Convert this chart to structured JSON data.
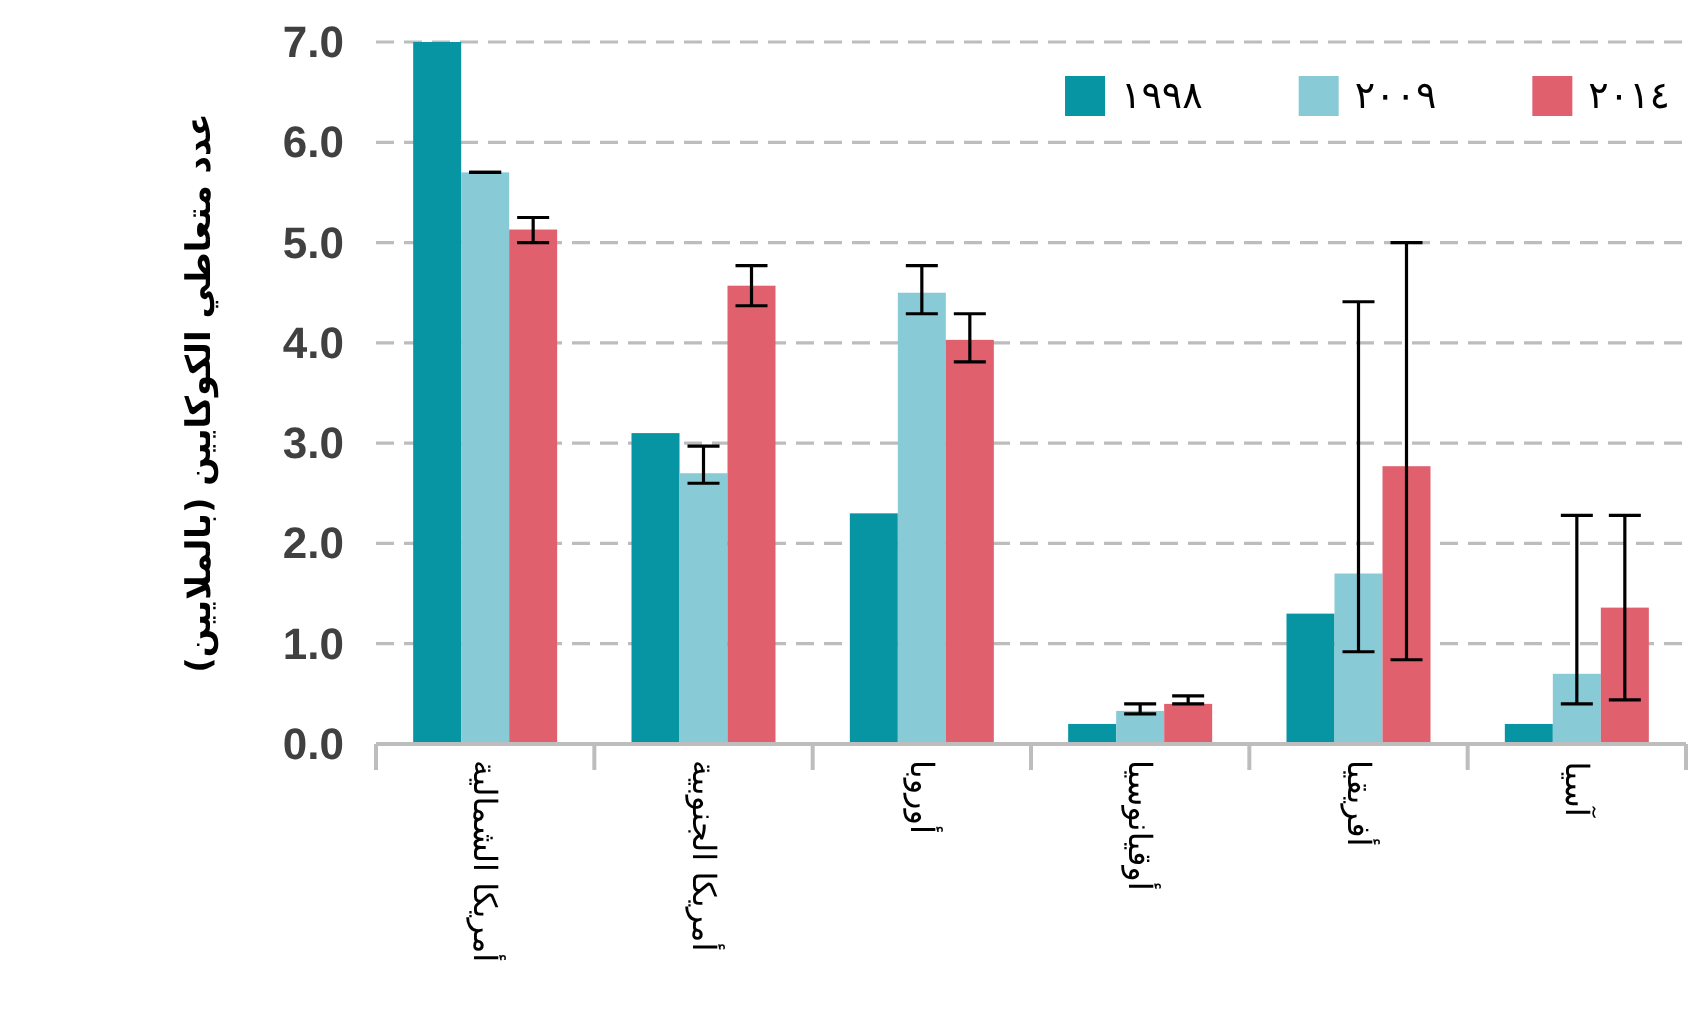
{
  "chart_data": {
    "type": "bar",
    "ylabel": "عدد متعاطي الكوكايين (بالملايين)",
    "categories": [
      "أمريكا الشمالية",
      "أمريكا الجنوبية",
      "أوروبا",
      "أوقيانوسيا",
      "أفريقيا",
      "آسيا"
    ],
    "series": [
      {
        "name": "١٩٩٨",
        "color": "#0795a3",
        "values": [
          7.0,
          3.1,
          2.3,
          0.2,
          1.3,
          0.2
        ]
      },
      {
        "name": "٢٠٠٩",
        "color": "#88cbd6",
        "values": [
          5.7,
          2.7,
          4.5,
          0.33,
          1.7,
          0.7
        ],
        "errors": [
          [
            5.7,
            5.7
          ],
          [
            2.6,
            2.97
          ],
          [
            4.29,
            4.77
          ],
          [
            0.3,
            0.4
          ],
          [
            0.92,
            4.41
          ],
          [
            0.4,
            2.28
          ]
        ]
      },
      {
        "name": "٢٠١٤",
        "color": "#e0606e",
        "values": [
          5.13,
          4.57,
          4.03,
          0.4,
          2.77,
          1.36
        ],
        "errors": [
          [
            5.0,
            5.25
          ],
          [
            4.37,
            4.77
          ],
          [
            3.81,
            4.29
          ],
          [
            0.4,
            0.48
          ],
          [
            0.84,
            5.0
          ],
          [
            0.44,
            2.28
          ]
        ]
      }
    ],
    "ylim": [
      0,
      7
    ],
    "yticks": [
      {
        "value": 0,
        "label": "0.0"
      },
      {
        "value": 1,
        "label": "1.0"
      },
      {
        "value": 2,
        "label": "2.0"
      },
      {
        "value": 3,
        "label": "3.0"
      },
      {
        "value": 4,
        "label": "4.0"
      },
      {
        "value": 5,
        "label": "5.0"
      },
      {
        "value": 6,
        "label": "6.0"
      },
      {
        "value": 7,
        "label": "7.0"
      }
    ],
    "grid": "y",
    "legend": "top right"
  }
}
